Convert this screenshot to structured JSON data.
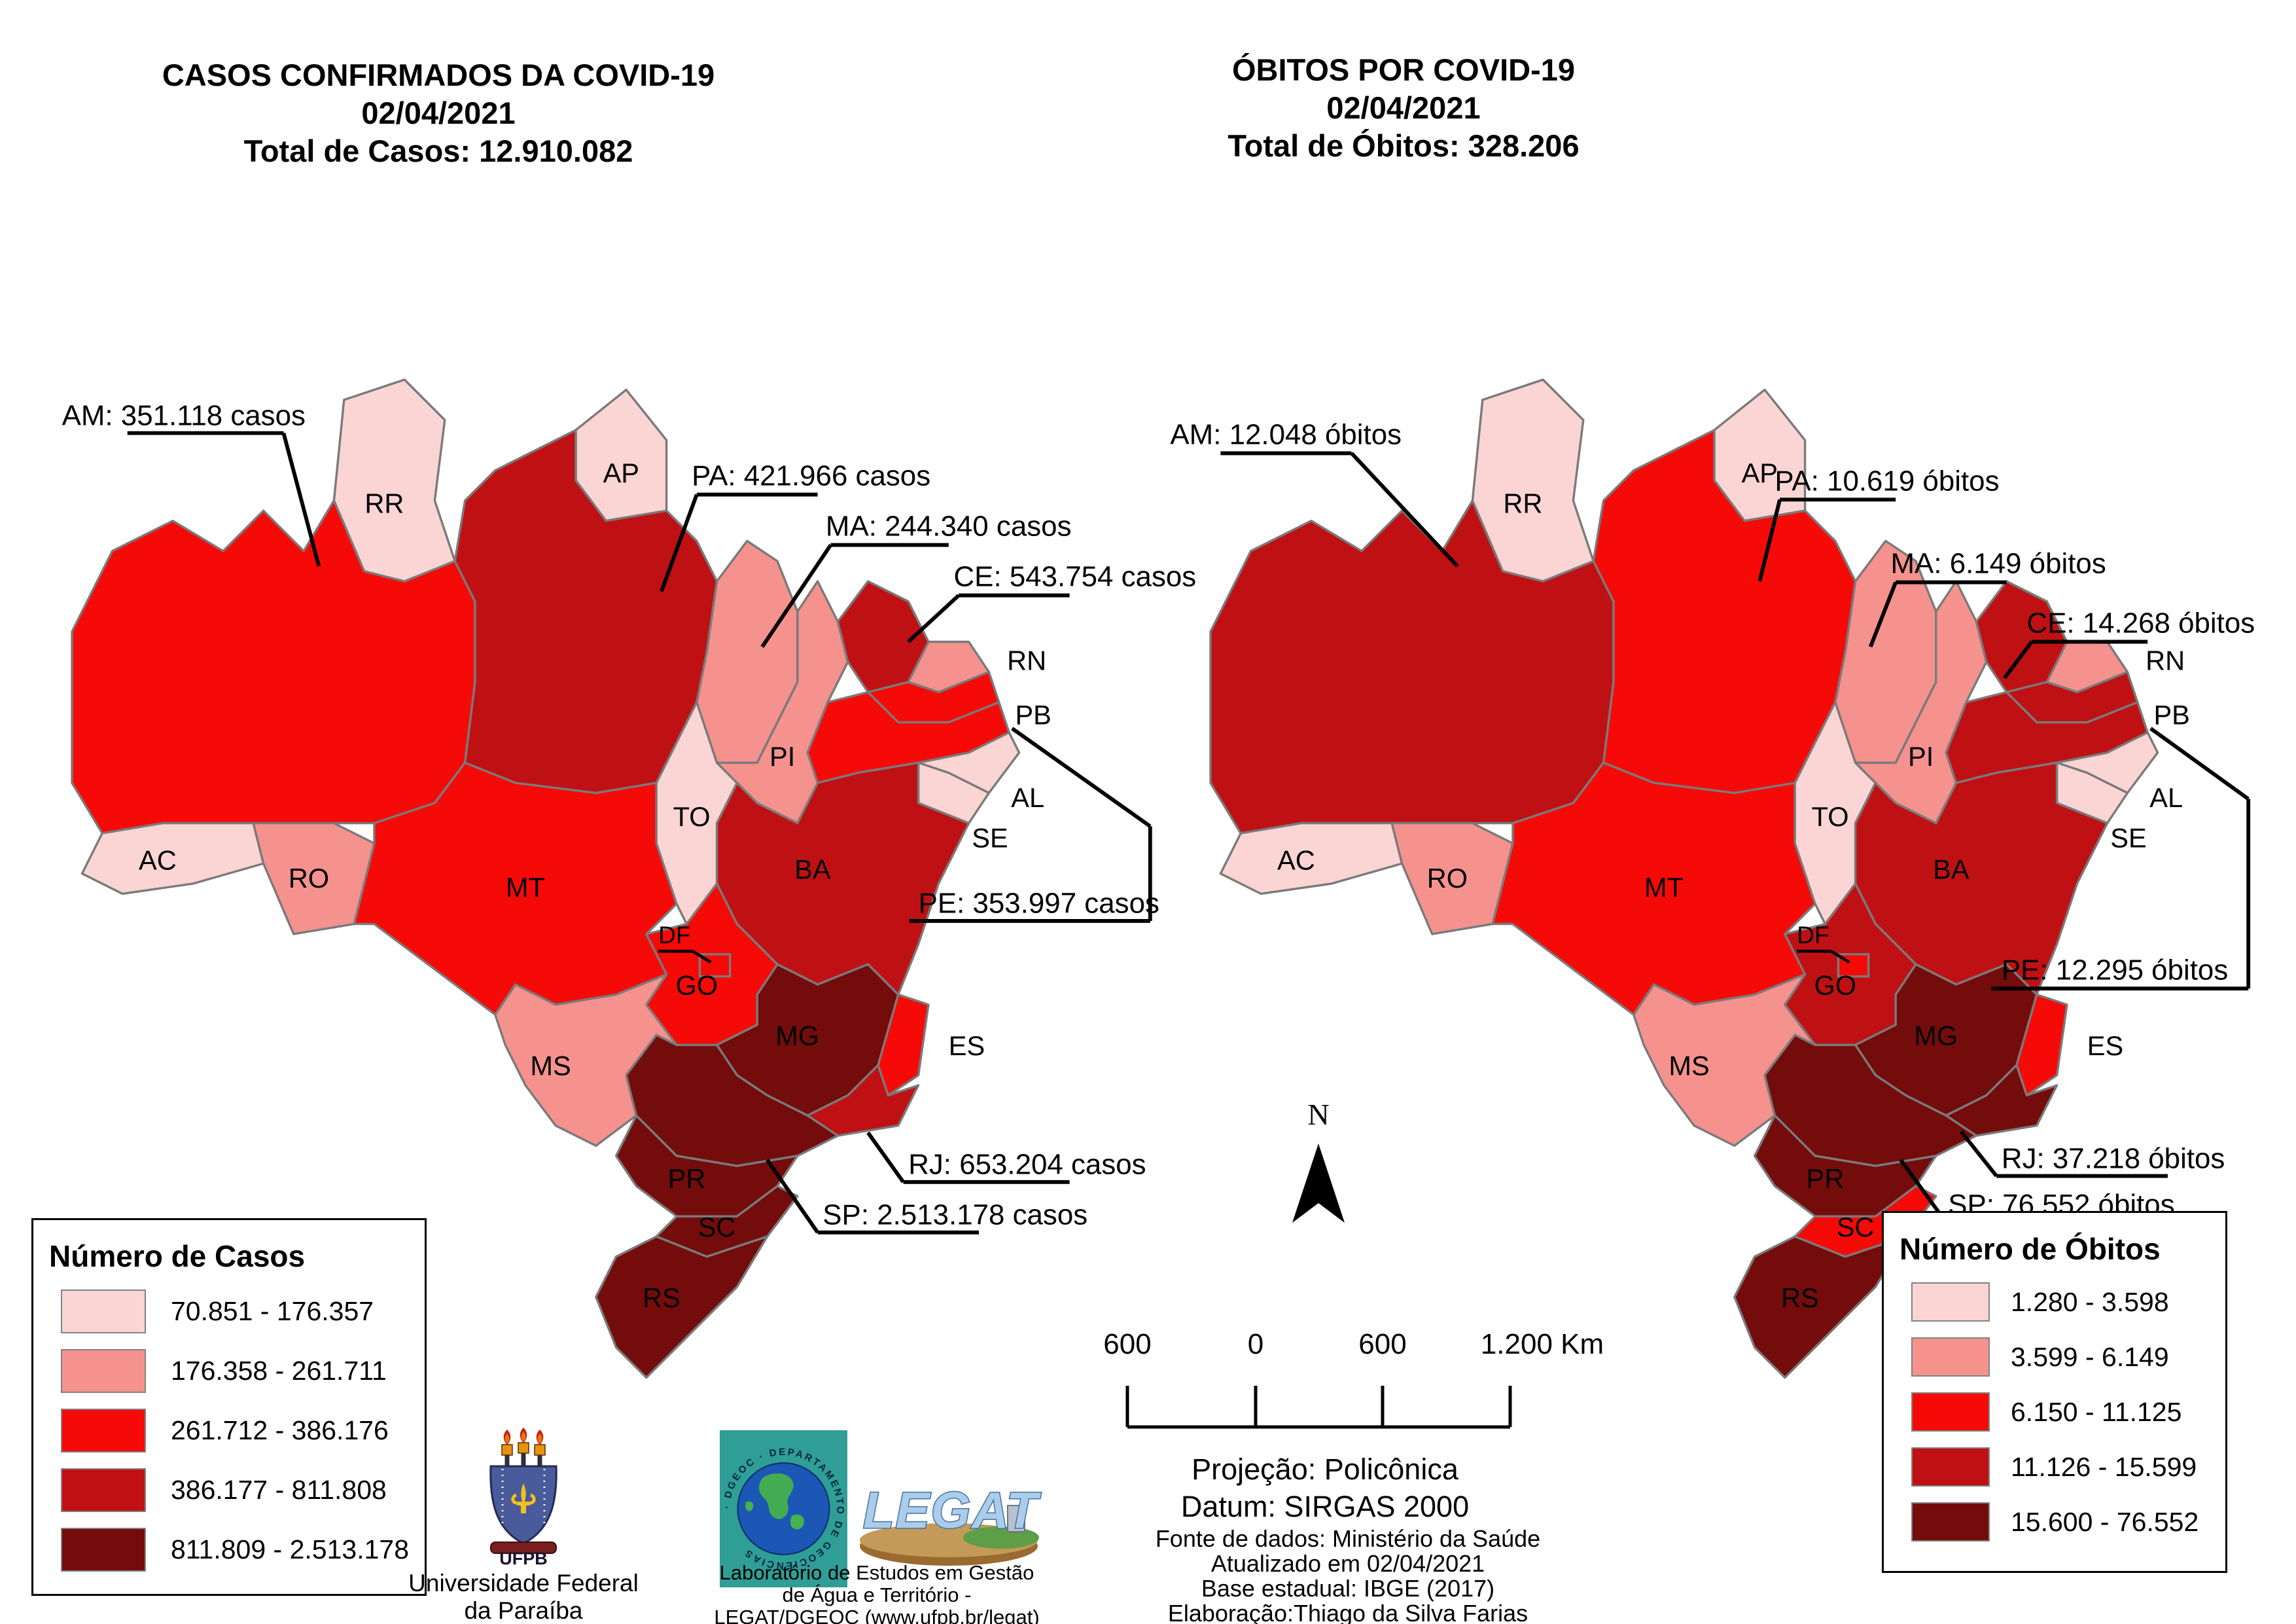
{
  "palette": {
    "class1": "#FAD5D3",
    "class2": "#F5928E",
    "class3": "#F50A08",
    "class4": "#BF1114",
    "class5": "#740C0C",
    "state_border": "#7a7a7a"
  },
  "left_panel": {
    "title_lines": [
      "CASOS CONFIRMADOS DA COVID-19",
      "02/04/2021",
      "Total de Casos: 12.910.082"
    ],
    "callouts": {
      "AM": "AM: 351.118 casos",
      "PA": "PA: 421.966 casos",
      "MA": "MA: 244.340 casos",
      "CE": "CE: 543.754 casos",
      "PE": "PE: 353.997 casos",
      "RJ": "RJ: 653.204 casos",
      "SP": "SP: 2.513.178 casos"
    },
    "state_classes": {
      "AC": 1,
      "AL": 1,
      "AP": 1,
      "RR": 1,
      "SE": 1,
      "TO": 1,
      "MA": 2,
      "MS": 2,
      "PI": 2,
      "RN": 2,
      "RO": 2,
      "AM": 3,
      "DF": 3,
      "ES": 3,
      "GO": 3,
      "MT": 3,
      "PB": 3,
      "PE": 3,
      "BA": 4,
      "CE": 4,
      "PA": 4,
      "RJ": 4,
      "MG": 5,
      "PR": 5,
      "RS": 5,
      "SC": 5,
      "SP": 5
    },
    "legend": {
      "title": "Número de Casos",
      "items": [
        {
          "label": "70.851 - 176.357",
          "color": "#FAD5D3"
        },
        {
          "label": "176.358 - 261.711",
          "color": "#F5928E"
        },
        {
          "label": "261.712 - 386.176",
          "color": "#F50A08"
        },
        {
          "label": "386.177 - 811.808",
          "color": "#BF1114"
        },
        {
          "label": "811.809 - 2.513.178",
          "color": "#740C0C"
        }
      ]
    }
  },
  "right_panel": {
    "title_lines": [
      "ÓBITOS POR COVID-19",
      "02/04/2021",
      "Total de Óbitos: 328.206"
    ],
    "callouts": {
      "AM": "AM: 12.048 óbitos",
      "PA": "PA: 10.619 óbitos",
      "MA": "MA: 6.149 óbitos",
      "CE": "CE: 14.268 óbitos",
      "PE": "PE: 12.295 óbitos",
      "RJ": "RJ: 37.218 óbitos",
      "SP": "SP: 76.552 óbitos"
    },
    "state_classes": {
      "AC": 1,
      "AL": 1,
      "AP": 1,
      "RR": 1,
      "SE": 1,
      "TO": 1,
      "MA": 2,
      "MS": 2,
      "PI": 2,
      "RN": 2,
      "RO": 2,
      "DF": 3,
      "ES": 3,
      "MT": 3,
      "PA": 3,
      "SC": 3,
      "AM": 4,
      "BA": 4,
      "CE": 4,
      "GO": 4,
      "PB": 4,
      "PE": 4,
      "MG": 5,
      "PR": 5,
      "RJ": 5,
      "RS": 5,
      "SP": 5
    },
    "legend": {
      "title": "Número de Óbitos",
      "items": [
        {
          "label": "1.280 - 3.598",
          "color": "#FAD5D3"
        },
        {
          "label": "3.599 - 6.149",
          "color": "#F5928E"
        },
        {
          "label": "6.150 - 11.125",
          "color": "#F50A08"
        },
        {
          "label": "11.126 - 15.599",
          "color": "#BF1114"
        },
        {
          "label": "15.600 - 76.552",
          "color": "#740C0C"
        }
      ]
    }
  },
  "map_common": {
    "state_labels": [
      "RR",
      "AP",
      "AC",
      "RO",
      "MT",
      "TO",
      "PI",
      "RN",
      "PB",
      "AL",
      "SE",
      "BA",
      "GO",
      "DF",
      "MS",
      "MG",
      "ES",
      "PR",
      "SC",
      "RS"
    ]
  },
  "north_arrow": {
    "label": "N"
  },
  "scale_bar": {
    "tick_labels": [
      "600",
      "0",
      "600"
    ],
    "end_label": "1.200 Km"
  },
  "projection_block": {
    "lines": [
      "Projeção: Policônica",
      "Datum: SIRGAS 2000"
    ]
  },
  "source_block": {
    "lines": [
      "Fonte de dados: Ministério da Saúde",
      "Atualizado em 02/04/2021",
      "Base estadual: IBGE (2017)",
      "Elaboração:Thiago da Silva Farias"
    ]
  },
  "logos": {
    "ufpb": {
      "acronym": "UFPB",
      "caption_lines": [
        "Universidade Federal",
        "da Paraíba"
      ]
    },
    "dgeoc": {
      "ring_text": "· DGEOC · DEPARTAMENTO DE GEOCIÊNCIAS "
    },
    "legat": {
      "wordmark": "LEGAT",
      "caption_lines": [
        "Laboratório de Estudos em Gestão",
        "de Água e Território -",
        "LEGAT/DGEOC (www.ufpb.br/legat)"
      ]
    }
  },
  "chart_data": [
    {
      "type": "choropleth_map",
      "title": "CASOS CONFIRMADOS DA COVID-19",
      "date": "02/04/2021",
      "total_label": "Total de Casos: 12.910.082",
      "total": 12910082,
      "unit": "casos",
      "legend_title": "Número de Casos",
      "class_breaks": [
        "70.851 - 176.357",
        "176.358 - 261.711",
        "261.712 - 386.176",
        "386.177 - 811.808",
        "811.809 - 2.513.178"
      ],
      "annotated_values": {
        "AM": 351118,
        "PA": 421966,
        "MA": 244340,
        "CE": 543754,
        "PE": 353997,
        "RJ": 653204,
        "SP": 2513178
      },
      "state_classes": {
        "AC": 1,
        "AL": 1,
        "AP": 1,
        "RR": 1,
        "SE": 1,
        "TO": 1,
        "MA": 2,
        "MS": 2,
        "PI": 2,
        "RN": 2,
        "RO": 2,
        "AM": 3,
        "DF": 3,
        "ES": 3,
        "GO": 3,
        "MT": 3,
        "PB": 3,
        "PE": 3,
        "BA": 4,
        "CE": 4,
        "PA": 4,
        "RJ": 4,
        "MG": 5,
        "PR": 5,
        "RS": 5,
        "SC": 5,
        "SP": 5
      }
    },
    {
      "type": "choropleth_map",
      "title": "ÓBITOS POR COVID-19",
      "date": "02/04/2021",
      "total_label": "Total de Óbitos: 328.206",
      "total": 328206,
      "unit": "óbitos",
      "legend_title": "Número de Óbitos",
      "class_breaks": [
        "1.280 - 3.598",
        "3.599 - 6.149",
        "6.150 - 11.125",
        "11.126 - 15.599",
        "15.600 - 76.552"
      ],
      "annotated_values": {
        "AM": 12048,
        "PA": 10619,
        "MA": 6149,
        "CE": 14268,
        "PE": 12295,
        "RJ": 37218,
        "SP": 76552
      },
      "state_classes": {
        "AC": 1,
        "AL": 1,
        "AP": 1,
        "RR": 1,
        "SE": 1,
        "TO": 1,
        "MA": 2,
        "MS": 2,
        "PI": 2,
        "RN": 2,
        "RO": 2,
        "DF": 3,
        "ES": 3,
        "MT": 3,
        "PA": 3,
        "SC": 3,
        "AM": 4,
        "BA": 4,
        "CE": 4,
        "GO": 4,
        "PB": 4,
        "PE": 4,
        "MG": 5,
        "PR": 5,
        "RJ": 5,
        "RS": 5,
        "SP": 5
      }
    }
  ]
}
